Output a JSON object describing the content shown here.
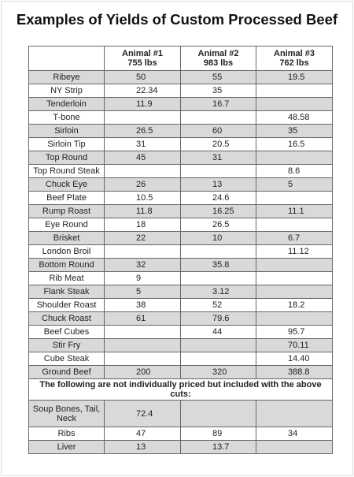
{
  "title": "Examples of Yields of Custom Processed Beef",
  "columns": [
    {
      "name": "Animal #1",
      "weight": "755 lbs"
    },
    {
      "name": "Animal #2",
      "weight": "983 lbs"
    },
    {
      "name": "Animal #3",
      "weight": "762 lbs"
    }
  ],
  "rows": [
    {
      "cut": "Ribeye",
      "values": [
        "50",
        "55",
        "19.5"
      ]
    },
    {
      "cut": "NY Strip",
      "values": [
        "22.34",
        "35",
        null
      ]
    },
    {
      "cut": "Tenderloin",
      "values": [
        "11.9",
        "16.7",
        null
      ]
    },
    {
      "cut": "T-bone",
      "values": [
        null,
        null,
        "48.58"
      ]
    },
    {
      "cut": "Sirloin",
      "values": [
        "26.5",
        "60",
        "35"
      ]
    },
    {
      "cut": "Sirloin Tip",
      "values": [
        "31",
        "20.5",
        "16.5"
      ]
    },
    {
      "cut": "Top Round",
      "values": [
        "45",
        "31",
        null
      ]
    },
    {
      "cut": "Top Round Steak",
      "values": [
        null,
        null,
        "8.6"
      ]
    },
    {
      "cut": "Chuck Eye",
      "values": [
        "26",
        "13",
        "5"
      ]
    },
    {
      "cut": "Beef Plate",
      "values": [
        "10.5",
        "24.6",
        null
      ]
    },
    {
      "cut": "Rump Roast",
      "values": [
        "11.8",
        "16.25",
        "11.1"
      ]
    },
    {
      "cut": "Eye Round",
      "values": [
        "18",
        "26.5",
        null
      ]
    },
    {
      "cut": "Brisket",
      "values": [
        "22",
        "10",
        "6.7"
      ]
    },
    {
      "cut": "London Broil",
      "values": [
        null,
        null,
        "11.12"
      ]
    },
    {
      "cut": "Bottom Round",
      "values": [
        "32",
        "35.8",
        null
      ]
    },
    {
      "cut": "Rib Meat",
      "values": [
        "9",
        null,
        null
      ]
    },
    {
      "cut": "Flank Steak",
      "values": [
        "5",
        "3.12",
        null
      ]
    },
    {
      "cut": "Shoulder Roast",
      "values": [
        "38",
        "52",
        "18.2"
      ]
    },
    {
      "cut": "Chuck Roast",
      "values": [
        "61",
        "79.6",
        null
      ]
    },
    {
      "cut": "Beef Cubes",
      "values": [
        null,
        "44",
        "95.7"
      ]
    },
    {
      "cut": "Stir Fry",
      "values": [
        null,
        null,
        "70.11"
      ]
    },
    {
      "cut": "Cube Steak",
      "values": [
        null,
        null,
        "14.40"
      ]
    },
    {
      "cut": "Ground Beef",
      "values": [
        "200",
        "320",
        "388.8"
      ]
    }
  ],
  "note": "The following are not individually priced but included with the above cuts:",
  "extra_rows": [
    {
      "cut": "Soup Bones, Tail, Neck",
      "values": [
        "72.4",
        null,
        null
      ]
    },
    {
      "cut": "Ribs",
      "values": [
        "47",
        "89",
        "34"
      ]
    },
    {
      "cut": "Liver",
      "values": [
        "13",
        "13.7",
        null
      ]
    }
  ]
}
